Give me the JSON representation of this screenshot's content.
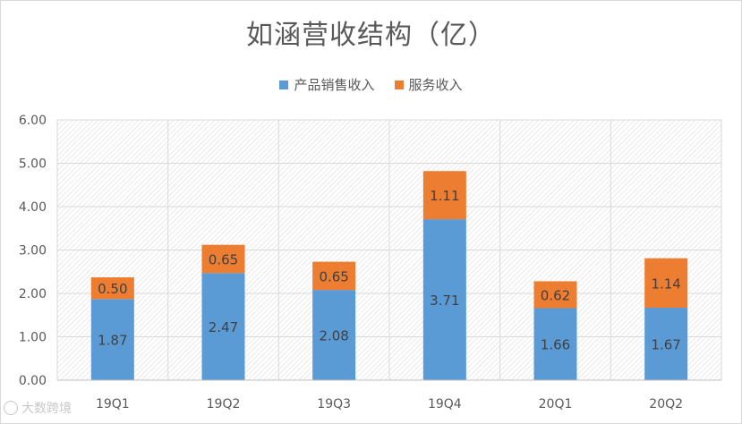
{
  "chart_data": {
    "type": "bar",
    "stacked": true,
    "title": "如涵营收结构（亿）",
    "categories": [
      "19Q1",
      "19Q2",
      "19Q3",
      "19Q4",
      "20Q1",
      "20Q2"
    ],
    "series": [
      {
        "name": "产品销售收入",
        "values": [
          1.87,
          2.47,
          2.08,
          3.71,
          1.66,
          1.67
        ],
        "labels": [
          "1.87",
          "2.47",
          "2.08",
          "3.71",
          "1.66",
          "1.67"
        ],
        "color": "#5b9bd5"
      },
      {
        "name": "服务收入",
        "values": [
          0.5,
          0.65,
          0.65,
          1.11,
          0.62,
          1.14
        ],
        "labels": [
          "0.50",
          "0.65",
          "0.65",
          "1.11",
          "0.62",
          "1.14"
        ],
        "color": "#ed7d31"
      }
    ],
    "yticks": [
      "0.00",
      "1.00",
      "2.00",
      "3.00",
      "4.00",
      "5.00",
      "6.00"
    ],
    "ylim": [
      0,
      6
    ],
    "grid": true,
    "legend": "top-center"
  },
  "watermark": {
    "text": "大数跨境"
  }
}
